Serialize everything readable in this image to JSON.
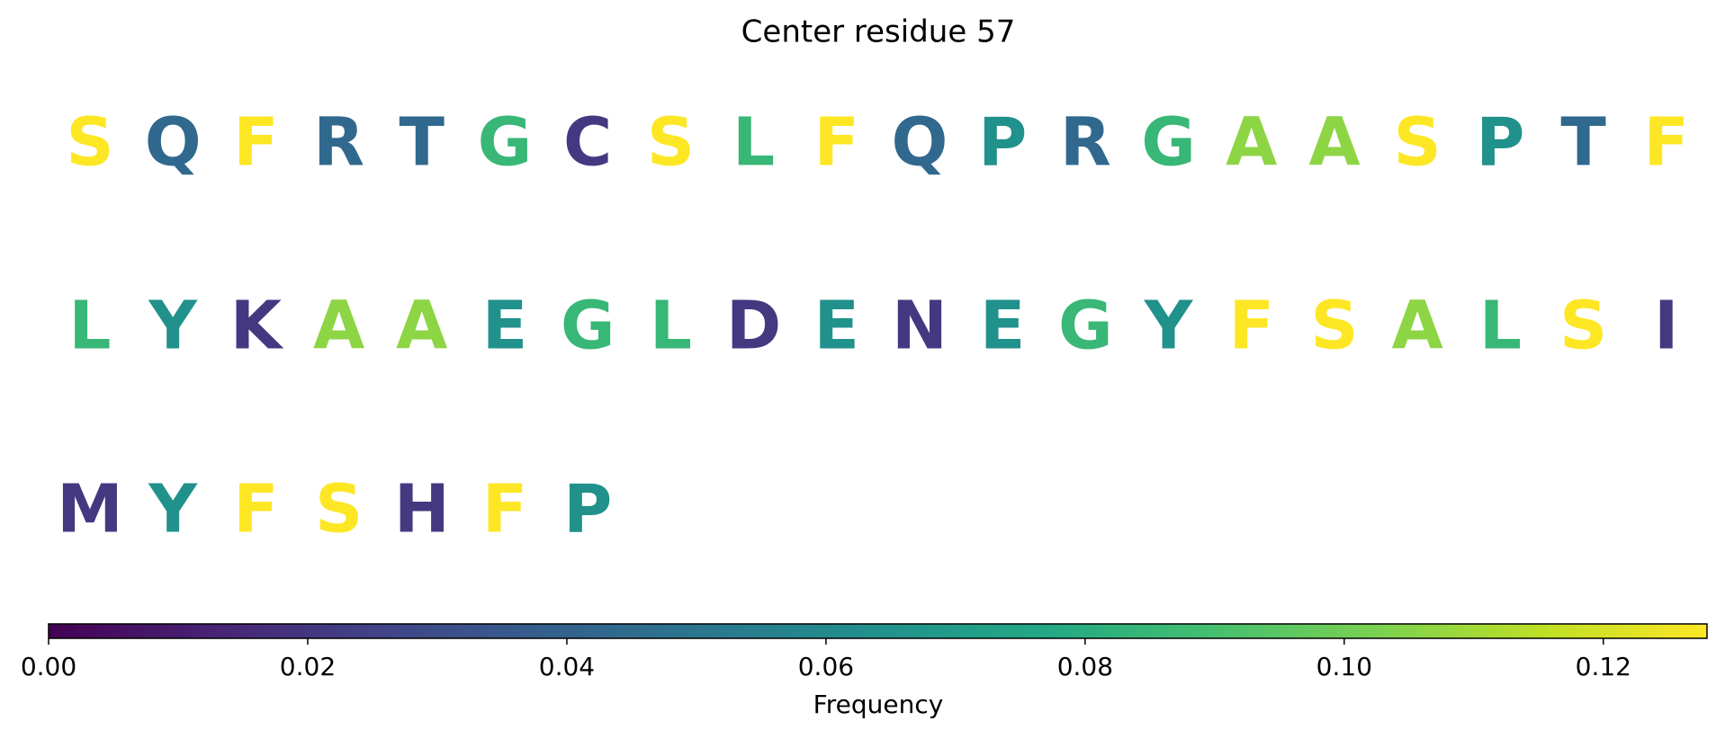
{
  "chart_data": {
    "type": "colored_sequence",
    "title": "Center residue 57",
    "letters": [
      "S",
      "Q",
      "F",
      "R",
      "T",
      "G",
      "C",
      "S",
      "L",
      "F",
      "Q",
      "P",
      "R",
      "G",
      "A",
      "A",
      "S",
      "P",
      "T",
      "F",
      "L",
      "Y",
      "K",
      "A",
      "A",
      "E",
      "G",
      "L",
      "D",
      "E",
      "N",
      "E",
      "G",
      "Y",
      "F",
      "S",
      "A",
      "L",
      "S",
      "I",
      "M",
      "Y",
      "F",
      "S",
      "H",
      "F",
      "P"
    ],
    "values": [
      0.128,
      0.043,
      0.128,
      0.043,
      0.043,
      0.085,
      0.021,
      0.128,
      0.085,
      0.128,
      0.043,
      0.064,
      0.043,
      0.085,
      0.106,
      0.106,
      0.128,
      0.064,
      0.043,
      0.128,
      0.085,
      0.064,
      0.021,
      0.106,
      0.106,
      0.064,
      0.085,
      0.085,
      0.021,
      0.064,
      0.021,
      0.064,
      0.085,
      0.064,
      0.128,
      0.128,
      0.106,
      0.085,
      0.128,
      0.021,
      0.021,
      0.064,
      0.128,
      0.128,
      0.021,
      0.128,
      0.064
    ],
    "colormap": "viridis",
    "clim": [
      0,
      0.128
    ],
    "cticks": [
      {
        "value": 0,
        "label": "0.00"
      },
      {
        "value": 0.02,
        "label": "0.02"
      },
      {
        "value": 0.04,
        "label": "0.04"
      },
      {
        "value": 0.06,
        "label": "0.06"
      },
      {
        "value": 0.08,
        "label": "0.08"
      },
      {
        "value": 0.1,
        "label": "0.10"
      },
      {
        "value": 0.12,
        "label": "0.12"
      }
    ],
    "colorbar_label": "Frequency"
  }
}
